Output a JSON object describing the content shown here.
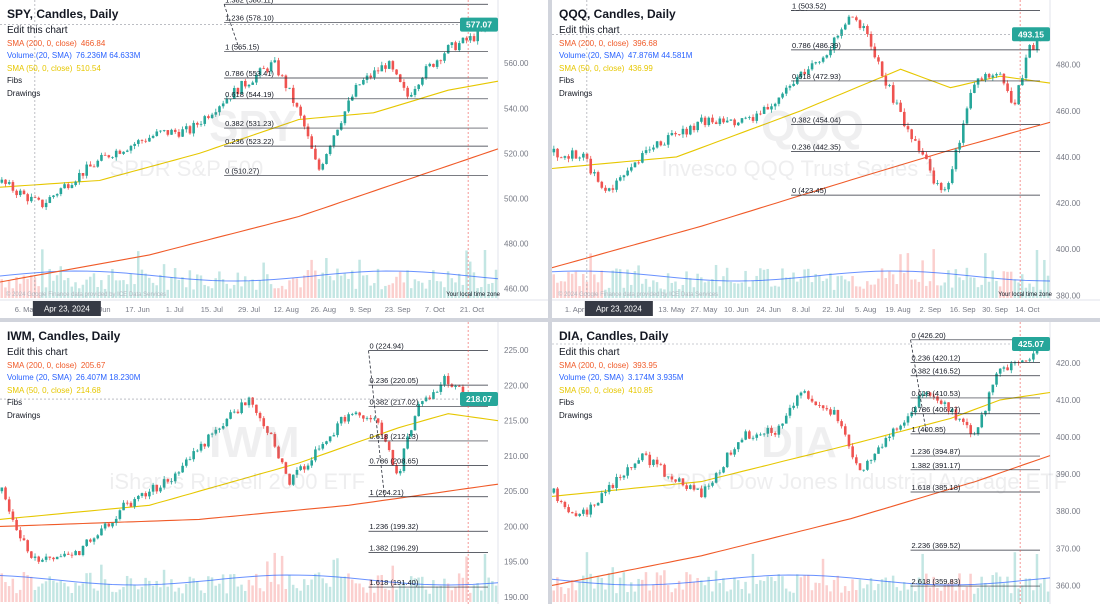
{
  "panes": [
    {
      "id": "spy",
      "title": "SPY, Candles, Daily",
      "edit_label": "Edit this chart",
      "watermark_symbol": "SPY",
      "watermark_name": "SPDR S&P 500",
      "indicators": [
        {
          "label": "SMA (200, 0, close)",
          "value": "466.84",
          "color": "#f05a28"
        },
        {
          "label": "Volume (20, SMA)",
          "value": "76.236M 64.633M",
          "color": "#2962ff"
        },
        {
          "label": "Fibs",
          "value": "",
          "color": "#131722"
        },
        {
          "label": "Drawings",
          "value": "",
          "color": "#131722"
        }
      ],
      "sma50_label": "SMA (50, 0, close)",
      "sma50_value": "510.54",
      "last_price": "577.07",
      "price_axis": [
        "560.00",
        "540.00",
        "520.00",
        "500.00",
        "480.00",
        "460.00"
      ],
      "time_axis": [
        "6. May",
        "20. May",
        "3. Jun",
        "17. Jun",
        "1. Jul",
        "15. Jul",
        "29. Jul",
        "12. Aug",
        "26. Aug",
        "9. Sep",
        "23. Sep",
        "7. Oct",
        "21. Oct"
      ],
      "crosshair_date": "Apr 23, 2024",
      "footer_note": "© 2024 Google Finance data provided by ICE Data Services",
      "timezone_label": "Your local time zone",
      "fib_levels": [
        {
          "ratio": "1.382",
          "price": "(586.11)"
        },
        {
          "ratio": "1.236",
          "price": "(578.10)"
        },
        {
          "ratio": "1",
          "price": "(565.15)"
        },
        {
          "ratio": "0.786",
          "price": "(553.41)"
        },
        {
          "ratio": "0.618",
          "price": "(544.19)"
        },
        {
          "ratio": "0.382",
          "price": "(531.23)"
        },
        {
          "ratio": "0.236",
          "price": "(523.22)"
        },
        {
          "ratio": "0",
          "price": "(510.27)"
        }
      ]
    },
    {
      "id": "qqq",
      "title": "QQQ, Candles, Daily",
      "edit_label": "Edit this chart",
      "watermark_symbol": "QQQ",
      "watermark_name": "Invesco QQQ Trust Series 1",
      "indicators": [
        {
          "label": "SMA (200, 0, close)",
          "value": "396.68",
          "color": "#f05a28"
        },
        {
          "label": "Volume (20, SMA)",
          "value": "47.876M 44.581M",
          "color": "#2962ff"
        },
        {
          "label": "Fibs",
          "value": "",
          "color": "#131722"
        },
        {
          "label": "Drawings",
          "value": "",
          "color": "#131722"
        }
      ],
      "sma50_label": "SMA (50, 0, close)",
      "sma50_value": "436.99",
      "last_price": "493.15",
      "price_axis": [
        "480.00",
        "460.00",
        "440.00",
        "420.00",
        "400.00",
        "380.00"
      ],
      "time_axis": [
        "1. Apr",
        "15. Apr",
        "29. Apr",
        "13. May",
        "27. May",
        "10. Jun",
        "24. Jun",
        "8. Jul",
        "22. Jul",
        "5. Aug",
        "19. Aug",
        "2. Sep",
        "16. Sep",
        "30. Sep",
        "14. Oct"
      ],
      "crosshair_date": "Apr 23, 2024",
      "footer_note": "© 2024 Google Finance data provided by ICE Data Services",
      "timezone_label": "Your local time zone",
      "fib_levels": [
        {
          "ratio": "1",
          "price": "(503.52)"
        },
        {
          "ratio": "0.786",
          "price": "(486.39)"
        },
        {
          "ratio": "0.618",
          "price": "(472.93)"
        },
        {
          "ratio": "0.382",
          "price": "(454.04)"
        },
        {
          "ratio": "0.236",
          "price": "(442.35)"
        },
        {
          "ratio": "0",
          "price": "(423.45)"
        }
      ]
    },
    {
      "id": "iwm",
      "title": "IWM, Candles, Daily",
      "edit_label": "Edit this chart",
      "watermark_symbol": "IWM",
      "watermark_name": "iShares Russell 2000 ETF",
      "indicators": [
        {
          "label": "SMA (200, 0, close)",
          "value": "205.67",
          "color": "#f05a28"
        },
        {
          "label": "Volume (20, SMA)",
          "value": "26.407M 18.230M",
          "color": "#2962ff"
        },
        {
          "label": "Fibs",
          "value": "",
          "color": "#131722"
        },
        {
          "label": "Drawings",
          "value": "",
          "color": "#131722"
        }
      ],
      "sma50_label": "SMA (50, 0, close)",
      "sma50_value": "214.68",
      "last_price": "218.07",
      "price_axis": [
        "225.00",
        "220.00",
        "215.00",
        "210.00",
        "205.00",
        "200.00",
        "195.00",
        "190.00"
      ],
      "time_axis": [],
      "crosshair_date": "",
      "footer_note": "",
      "timezone_label": "",
      "fib_levels": [
        {
          "ratio": "0",
          "price": "(224.94)"
        },
        {
          "ratio": "0.236",
          "price": "(220.05)"
        },
        {
          "ratio": "0.382",
          "price": "(217.02)"
        },
        {
          "ratio": "0.618",
          "price": "(212.13)"
        },
        {
          "ratio": "0.786",
          "price": "(208.65)"
        },
        {
          "ratio": "1",
          "price": "(204.21)"
        },
        {
          "ratio": "1.236",
          "price": "(199.32)"
        },
        {
          "ratio": "1.382",
          "price": "(196.29)"
        },
        {
          "ratio": "1.618",
          "price": "(191.40)"
        }
      ]
    },
    {
      "id": "dia",
      "title": "DIA, Candles, Daily",
      "edit_label": "Edit this chart",
      "watermark_symbol": "DIA",
      "watermark_name": "SPDR Dow Jones Industrial Average ETF",
      "indicators": [
        {
          "label": "SMA (200, 0, close)",
          "value": "393.95",
          "color": "#f05a28"
        },
        {
          "label": "Volume (20, SMA)",
          "value": "3.174M 3.935M",
          "color": "#2962ff"
        },
        {
          "label": "Fibs",
          "value": "",
          "color": "#131722"
        },
        {
          "label": "Drawings",
          "value": "",
          "color": "#131722"
        }
      ],
      "sma50_label": "SMA (50, 0, close)",
      "sma50_value": "410.85",
      "last_price": "425.07",
      "price_axis": [
        "420.00",
        "410.00",
        "400.00",
        "390.00",
        "380.00",
        "370.00",
        "360.00"
      ],
      "time_axis": [],
      "crosshair_date": "",
      "footer_note": "",
      "timezone_label": "",
      "fib_levels": [
        {
          "ratio": "0",
          "price": "(426.20)"
        },
        {
          "ratio": "0.236",
          "price": "(420.12)"
        },
        {
          "ratio": "0.382",
          "price": "(416.52)"
        },
        {
          "ratio": "0.618",
          "price": "(410.53)"
        },
        {
          "ratio": "0.786",
          "price": "(406.27)"
        },
        {
          "ratio": "1",
          "price": "(400.85)"
        },
        {
          "ratio": "1.236",
          "price": "(394.87)"
        },
        {
          "ratio": "1.382",
          "price": "(391.17)"
        },
        {
          "ratio": "1.618",
          "price": "(385.18)"
        },
        {
          "ratio": "2.236",
          "price": "(369.52)"
        },
        {
          "ratio": "2.618",
          "price": "(359.83)"
        }
      ]
    }
  ],
  "colors": {
    "up": "#26a69a",
    "down": "#ef5350",
    "sma200": "#f05a28",
    "sma50": "#e6c700",
    "vol_sma": "#2962ff",
    "price_tag": "#26a69a",
    "fib_line": "#2a2e39"
  },
  "chart_data": [
    {
      "type": "candlestick",
      "title": "SPY, Candles, Daily",
      "series": [
        {
          "name": "SMA (200, 0, close)",
          "last": 466.84
        },
        {
          "name": "SMA (50, 0, close)",
          "last": 510.54
        }
      ],
      "ylim": [
        455,
        588
      ],
      "last_close": 577.07,
      "path": [
        [
          0,
          507
        ],
        [
          0.08,
          497
        ],
        [
          0.14,
          508
        ],
        [
          0.22,
          520
        ],
        [
          0.32,
          529
        ],
        [
          0.38,
          530
        ],
        [
          0.44,
          542
        ],
        [
          0.48,
          549
        ],
        [
          0.55,
          560
        ],
        [
          0.58,
          548
        ],
        [
          0.61,
          533
        ],
        [
          0.64,
          512
        ],
        [
          0.67,
          528
        ],
        [
          0.72,
          550
        ],
        [
          0.78,
          560
        ],
        [
          0.82,
          545
        ],
        [
          0.85,
          555
        ],
        [
          0.9,
          566
        ],
        [
          0.95,
          571
        ],
        [
          1,
          577
        ]
      ],
      "sma50_path": [
        [
          0,
          505
        ],
        [
          0.2,
          508
        ],
        [
          0.4,
          520
        ],
        [
          0.6,
          535
        ],
        [
          0.75,
          538
        ],
        [
          0.9,
          548
        ],
        [
          1,
          552
        ]
      ],
      "sma200_path": [
        [
          0,
          463
        ],
        [
          0.3,
          475
        ],
        [
          0.6,
          492
        ],
        [
          0.8,
          507
        ],
        [
          1,
          522
        ]
      ]
    },
    {
      "type": "candlestick",
      "title": "QQQ, Candles, Daily",
      "series": [
        {
          "name": "SMA (200, 0, close)",
          "last": 396.68
        },
        {
          "name": "SMA (50, 0, close)",
          "last": 436.99
        }
      ],
      "ylim": [
        378,
        508
      ],
      "last_close": 493.15,
      "path": [
        [
          0,
          442
        ],
        [
          0.06,
          440
        ],
        [
          0.1,
          425
        ],
        [
          0.15,
          432
        ],
        [
          0.2,
          445
        ],
        [
          0.3,
          455
        ],
        [
          0.4,
          455
        ],
        [
          0.5,
          475
        ],
        [
          0.55,
          485
        ],
        [
          0.6,
          500
        ],
        [
          0.63,
          494
        ],
        [
          0.67,
          473
        ],
        [
          0.71,
          455
        ],
        [
          0.75,
          440
        ],
        [
          0.78,
          425
        ],
        [
          0.8,
          430
        ],
        [
          0.85,
          472
        ],
        [
          0.9,
          478
        ],
        [
          0.93,
          460
        ],
        [
          0.96,
          487
        ],
        [
          1,
          493
        ]
      ],
      "sma50_path": [
        [
          0,
          435
        ],
        [
          0.25,
          440
        ],
        [
          0.5,
          460
        ],
        [
          0.7,
          478
        ],
        [
          0.8,
          470
        ],
        [
          0.9,
          475
        ],
        [
          1,
          472
        ]
      ],
      "sma200_path": [
        [
          0,
          392
        ],
        [
          0.3,
          410
        ],
        [
          0.6,
          430
        ],
        [
          0.8,
          443
        ],
        [
          1,
          455
        ]
      ]
    },
    {
      "type": "candlestick",
      "title": "IWM, Candles, Daily",
      "series": [
        {
          "name": "SMA (200, 0, close)",
          "last": 205.67
        },
        {
          "name": "SMA (50, 0, close)",
          "last": 214.68
        }
      ],
      "ylim": [
        189,
        229
      ],
      "last_close": 218.07,
      "path": [
        [
          0,
          205
        ],
        [
          0.06,
          195
        ],
        [
          0.15,
          196
        ],
        [
          0.25,
          203
        ],
        [
          0.35,
          207
        ],
        [
          0.45,
          215
        ],
        [
          0.5,
          218
        ],
        [
          0.55,
          212
        ],
        [
          0.58,
          206
        ],
        [
          0.63,
          210
        ],
        [
          0.7,
          216
        ],
        [
          0.76,
          215
        ],
        [
          0.8,
          207
        ],
        [
          0.84,
          217
        ],
        [
          0.9,
          221
        ],
        [
          0.95,
          218
        ],
        [
          1,
          218
        ]
      ],
      "sma50_path": [
        [
          0,
          201
        ],
        [
          0.3,
          203
        ],
        [
          0.6,
          209
        ],
        [
          0.8,
          214
        ],
        [
          0.9,
          216
        ],
        [
          1,
          215
        ]
      ],
      "sma200_path": [
        [
          0,
          200
        ],
        [
          0.4,
          201
        ],
        [
          0.7,
          203
        ],
        [
          0.9,
          205
        ],
        [
          1,
          206
        ]
      ]
    },
    {
      "type": "candlestick",
      "title": "DIA, Candles, Daily",
      "series": [
        {
          "name": "SMA (200, 0, close)",
          "last": 393.95
        },
        {
          "name": "SMA (50, 0, close)",
          "last": 410.85
        }
      ],
      "ylim": [
        355,
        431
      ],
      "last_close": 425.07,
      "path": [
        [
          0,
          385
        ],
        [
          0.05,
          378
        ],
        [
          0.1,
          385
        ],
        [
          0.18,
          395
        ],
        [
          0.25,
          388
        ],
        [
          0.3,
          385
        ],
        [
          0.38,
          400
        ],
        [
          0.45,
          402
        ],
        [
          0.5,
          412
        ],
        [
          0.58,
          405
        ],
        [
          0.62,
          390
        ],
        [
          0.68,
          400
        ],
        [
          0.75,
          412
        ],
        [
          0.8,
          408
        ],
        [
          0.85,
          400
        ],
        [
          0.9,
          418
        ],
        [
          0.95,
          420
        ],
        [
          1,
          425
        ]
      ],
      "sma50_path": [
        [
          0,
          384
        ],
        [
          0.3,
          388
        ],
        [
          0.6,
          398
        ],
        [
          0.8,
          405
        ],
        [
          0.9,
          410
        ],
        [
          1,
          412
        ]
      ],
      "sma200_path": [
        [
          0,
          360
        ],
        [
          0.3,
          368
        ],
        [
          0.6,
          378
        ],
        [
          0.85,
          388
        ],
        [
          1,
          395
        ]
      ]
    }
  ]
}
